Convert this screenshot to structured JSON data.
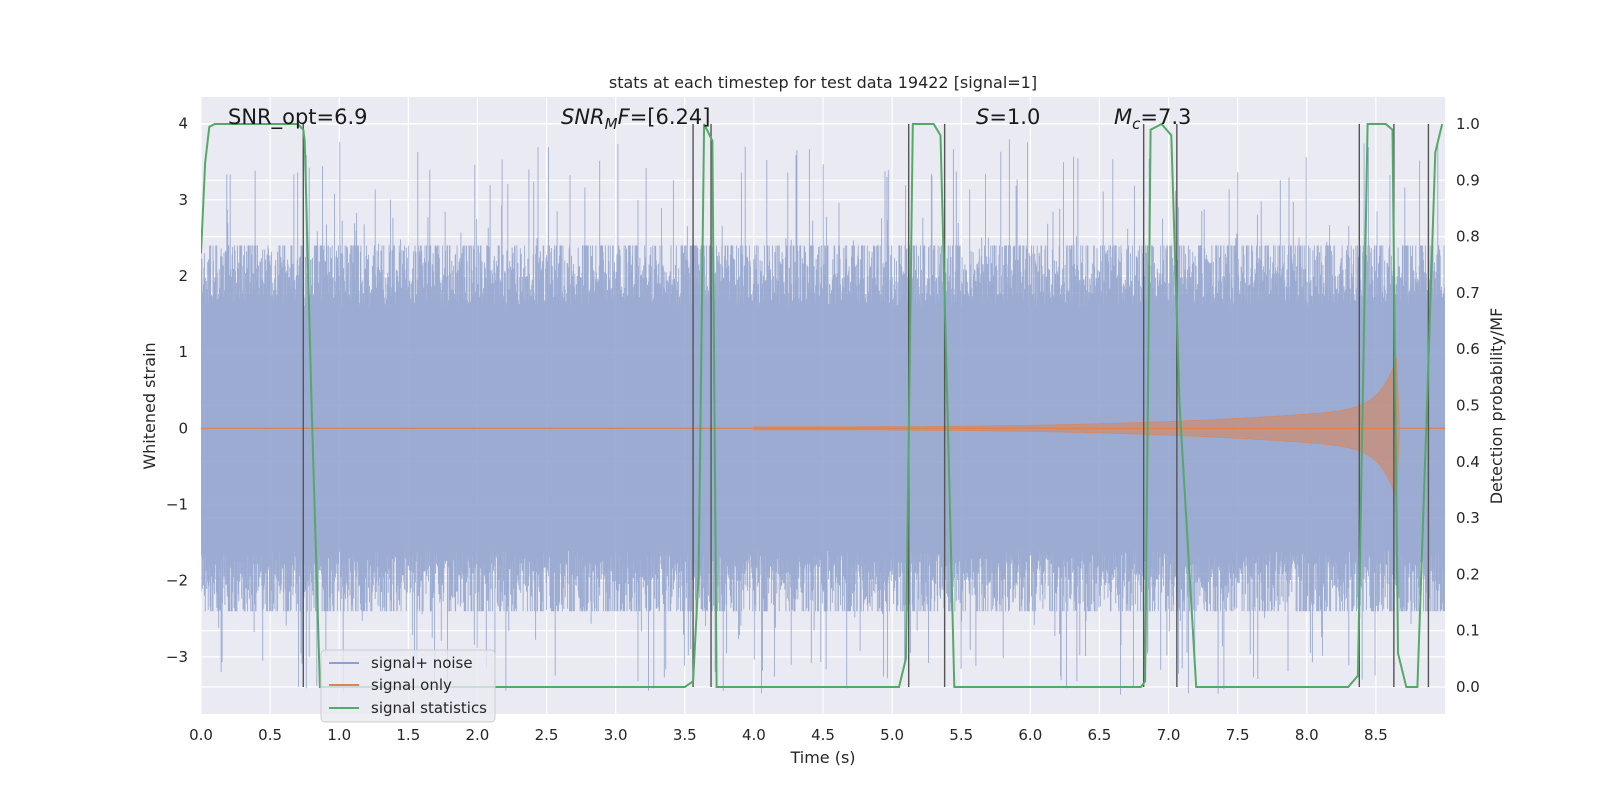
{
  "chart_data": {
    "type": "line",
    "title": "stats at each timestep for test data 19422 [signal=1]",
    "xlabel": "Time (s)",
    "ylabel": "Whitened strain",
    "y2label": "Detection probability/MF",
    "xlim": [
      0.0,
      9.0
    ],
    "ylim": [
      -3.75,
      4.35
    ],
    "y2lim": [
      -0.048,
      1.048
    ],
    "grid": true,
    "x_ticks": [
      0.0,
      0.5,
      1.0,
      1.5,
      2.0,
      2.5,
      3.0,
      3.5,
      4.0,
      4.5,
      5.0,
      5.5,
      6.0,
      6.5,
      7.0,
      7.5,
      8.0,
      8.5
    ],
    "x_tick_labels": [
      "0.0",
      "0.5",
      "1.0",
      "1.5",
      "2.0",
      "2.5",
      "3.0",
      "3.5",
      "4.0",
      "4.5",
      "5.0",
      "5.5",
      "6.0",
      "6.5",
      "7.0",
      "7.5",
      "8.0",
      "8.5"
    ],
    "y_ticks": [
      -3,
      -2,
      -1,
      0,
      1,
      2,
      3,
      4
    ],
    "y_tick_labels": [
      "−3",
      "−2",
      "−1",
      "0",
      "1",
      "2",
      "3",
      "4"
    ],
    "y2_ticks": [
      0.0,
      0.1,
      0.2,
      0.3,
      0.4,
      0.5,
      0.6,
      0.7,
      0.8,
      0.9,
      1.0
    ],
    "y2_tick_labels": [
      "0.0",
      "0.1",
      "0.2",
      "0.3",
      "0.4",
      "0.5",
      "0.6",
      "0.7",
      "0.8",
      "0.9",
      "1.0"
    ],
    "annotations": {
      "snr_opt": "SNR_opt=6.9",
      "snr_mf_main": "SNR",
      "snr_mf_sub": "M",
      "snr_mf_rest": "F",
      "snr_mf_value": "=[6.24]",
      "s_var": "S",
      "s_value": "=1.0",
      "mc_var": "M",
      "mc_sub": "c",
      "mc_value": "=7.3"
    },
    "series": [
      {
        "name": "signal+ noise",
        "color": "#8da0cb",
        "description_stats": {
          "std": 1.15,
          "typical_max": 2.4,
          "spike_max": 3.8,
          "typical_min": -2.4,
          "spike_min": -3.5
        }
      },
      {
        "name": "signal only",
        "color": "#dd8452",
        "chirp": {
          "start_time": 4.0,
          "end_time": 8.65,
          "start_amp": 0.0,
          "peak_amp": 0.65,
          "ringdown_time": 8.67
        }
      },
      {
        "name": "signal statistics",
        "color": "#55a868",
        "axis": "right",
        "x": [
          0.0,
          0.03,
          0.06,
          0.1,
          0.7,
          0.74,
          0.75,
          0.8,
          0.86,
          3.5,
          3.56,
          3.6,
          3.64,
          3.7,
          3.73,
          5.05,
          5.1,
          5.15,
          5.2,
          5.3,
          5.35,
          5.4,
          5.45,
          6.8,
          6.83,
          6.87,
          6.95,
          7.02,
          7.08,
          7.2,
          7.25,
          8.3,
          8.37,
          8.44,
          8.57,
          8.62,
          8.66,
          8.72,
          8.8,
          8.87,
          8.93,
          8.98
        ],
        "values": [
          0.77,
          0.93,
          0.995,
          1.0,
          1.0,
          0.99,
          0.97,
          0.5,
          0.0,
          0.0,
          0.01,
          0.2,
          1.0,
          0.97,
          0.0,
          0.0,
          0.05,
          1.0,
          1.0,
          1.0,
          0.98,
          0.5,
          0.0,
          0.0,
          0.01,
          0.99,
          1.0,
          0.98,
          0.5,
          0.0,
          0.0,
          0.0,
          0.02,
          1.0,
          1.0,
          0.99,
          0.06,
          0.0,
          0.0,
          0.5,
          0.95,
          1.0
        ]
      }
    ],
    "vertical_lines_x": [
      0.74,
      3.56,
      3.69,
      5.12,
      5.38,
      6.82,
      7.06,
      8.38,
      8.63,
      8.88
    ],
    "legend": {
      "position": "bottom-left",
      "entries": [
        "signal+ noise",
        "signal only",
        "signal statistics"
      ]
    }
  }
}
